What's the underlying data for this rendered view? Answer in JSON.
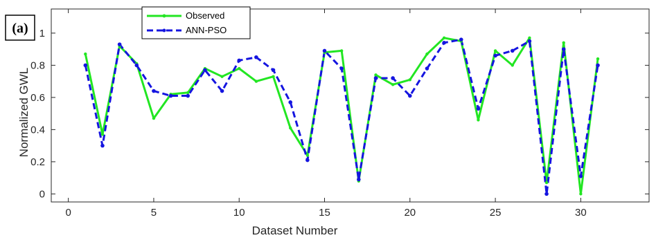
{
  "chart_data": {
    "type": "line",
    "panel_label": "(a)",
    "xlabel": "Dataset Number",
    "ylabel": "Normalized GWL",
    "xlim": [
      -1,
      34
    ],
    "ylim": [
      -0.05,
      1.15
    ],
    "xticks": [
      0,
      5,
      10,
      15,
      20,
      25,
      30
    ],
    "yticks": [
      0,
      0.2,
      0.4,
      0.6,
      0.8,
      1
    ],
    "ytick_labels": [
      "0",
      "0.2",
      "0.4",
      "0.6",
      "0.8",
      "1"
    ],
    "legend_position": "top-left",
    "grid": false,
    "x": [
      1,
      2,
      3,
      4,
      5,
      6,
      7,
      8,
      9,
      10,
      11,
      12,
      13,
      14,
      15,
      16,
      17,
      18,
      19,
      20,
      21,
      22,
      23,
      24,
      25,
      26,
      27,
      28,
      29,
      30,
      31
    ],
    "series": [
      {
        "name": "Observed",
        "color": "#22e622",
        "style": "solid",
        "values": [
          0.87,
          0.37,
          0.92,
          0.81,
          0.47,
          0.62,
          0.63,
          0.78,
          0.73,
          0.78,
          0.7,
          0.73,
          0.41,
          0.24,
          0.88,
          0.89,
          0.08,
          0.74,
          0.68,
          0.71,
          0.87,
          0.97,
          0.95,
          0.46,
          0.89,
          0.8,
          0.97,
          0.07,
          0.94,
          0.0,
          0.84
        ]
      },
      {
        "name": "ANN-PSO",
        "color": "#1515e0",
        "style": "dashed",
        "values": [
          0.8,
          0.3,
          0.93,
          0.8,
          0.64,
          0.61,
          0.61,
          0.77,
          0.64,
          0.83,
          0.85,
          0.77,
          0.57,
          0.21,
          0.89,
          0.78,
          0.09,
          0.72,
          0.72,
          0.61,
          0.78,
          0.94,
          0.96,
          0.53,
          0.86,
          0.89,
          0.95,
          0.0,
          0.9,
          0.11,
          0.8
        ]
      }
    ]
  }
}
